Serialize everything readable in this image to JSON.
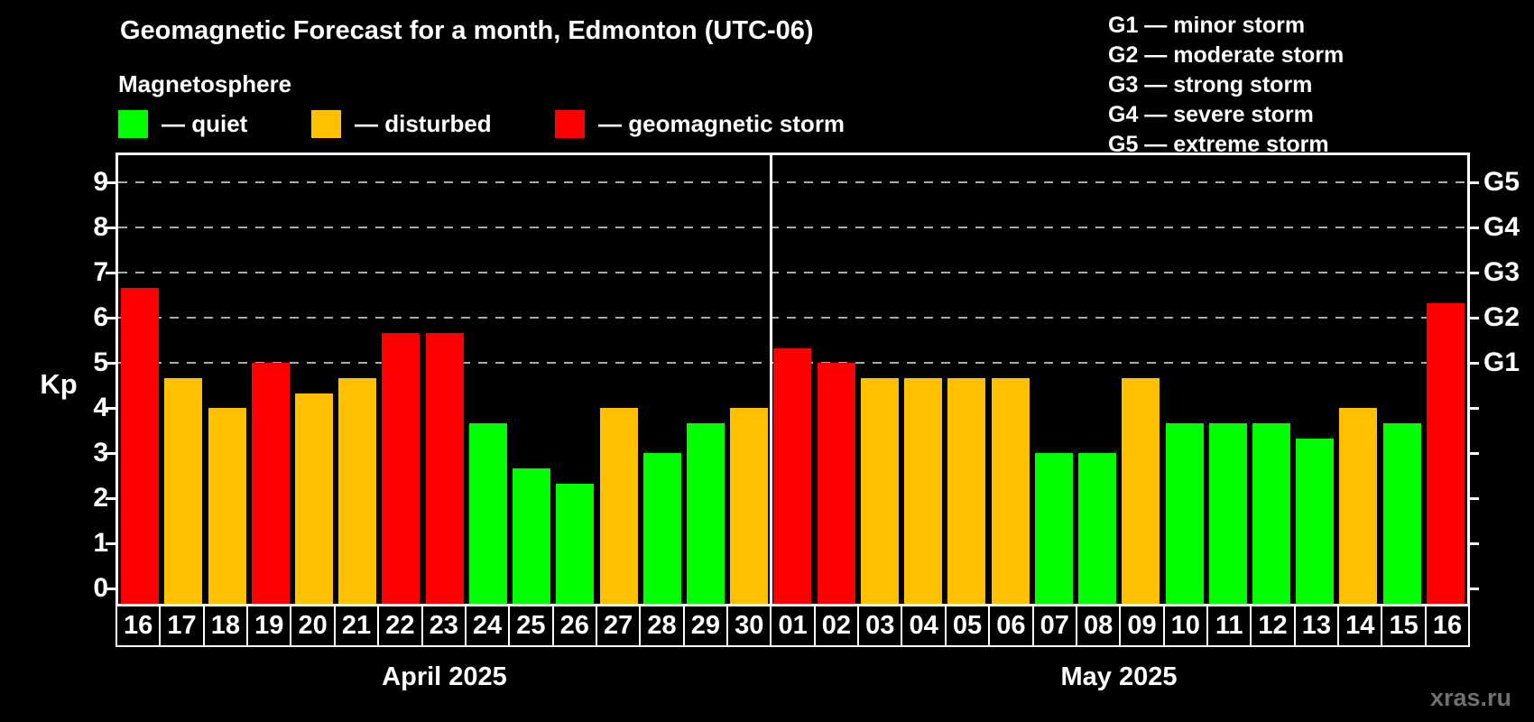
{
  "title": "Geomagnetic Forecast for a month, Edmonton (UTC-06)",
  "subtitle": "Magnetosphere",
  "legend": {
    "items": [
      {
        "label": "— quiet",
        "status": "quiet",
        "color": "#00ff00"
      },
      {
        "label": "— disturbed",
        "status": "disturbed",
        "color": "#ffc000"
      },
      {
        "label": "— geomagnetic storm",
        "status": "storm",
        "color": "#ff0000"
      }
    ]
  },
  "legend_g": {
    "items": [
      "G1 — minor storm",
      "G2 — moderate storm",
      "G3 — strong storm",
      "G4 — severe storm",
      "G5 — extreme storm"
    ]
  },
  "watermark": "xras.ru",
  "chart_data": {
    "type": "bar",
    "title": "Geomagnetic Forecast for a month, Edmonton (UTC-06)",
    "xlabel": "",
    "ylabel": "Kp",
    "ylim": [
      0,
      9
    ],
    "yticks": [
      0,
      1,
      2,
      3,
      4,
      5,
      6,
      7,
      8,
      9
    ],
    "gridlines_at": [
      5,
      6,
      7,
      8,
      9
    ],
    "grid": "dashed, horizontal, only at storm levels G1-G5",
    "legend_position": "top-left",
    "status_colors": {
      "quiet": "#00ff00",
      "disturbed": "#ffc000",
      "storm": "#ff0000"
    },
    "right_axis": {
      "labels": [
        {
          "kp": 5,
          "label": "G1"
        },
        {
          "kp": 6,
          "label": "G2"
        },
        {
          "kp": 7,
          "label": "G3"
        },
        {
          "kp": 8,
          "label": "G4"
        },
        {
          "kp": 9,
          "label": "G5"
        }
      ]
    },
    "groups": [
      {
        "label": "April 2025",
        "days": [
          "16",
          "17",
          "18",
          "19",
          "20",
          "21",
          "22",
          "23",
          "24",
          "25",
          "26",
          "27",
          "28",
          "29",
          "30"
        ],
        "values": [
          6.67,
          4.67,
          4.0,
          5.0,
          4.33,
          4.67,
          5.67,
          5.67,
          3.67,
          2.67,
          2.33,
          4.0,
          3.0,
          3.67,
          4.0
        ],
        "status": [
          "storm",
          "disturbed",
          "disturbed",
          "storm",
          "disturbed",
          "disturbed",
          "storm",
          "storm",
          "quiet",
          "quiet",
          "quiet",
          "disturbed",
          "quiet",
          "quiet",
          "disturbed"
        ]
      },
      {
        "label": "May 2025",
        "days": [
          "01",
          "02",
          "03",
          "04",
          "05",
          "06",
          "07",
          "08",
          "09",
          "10",
          "11",
          "12",
          "13",
          "14",
          "15",
          "16"
        ],
        "values": [
          5.33,
          5.0,
          4.67,
          4.67,
          4.67,
          4.67,
          3.0,
          3.0,
          4.67,
          3.67,
          3.67,
          3.67,
          3.33,
          4.0,
          3.67,
          6.33
        ],
        "status": [
          "storm",
          "storm",
          "disturbed",
          "disturbed",
          "disturbed",
          "disturbed",
          "quiet",
          "quiet",
          "disturbed",
          "quiet",
          "quiet",
          "quiet",
          "quiet",
          "disturbed",
          "quiet",
          "storm"
        ]
      }
    ]
  }
}
